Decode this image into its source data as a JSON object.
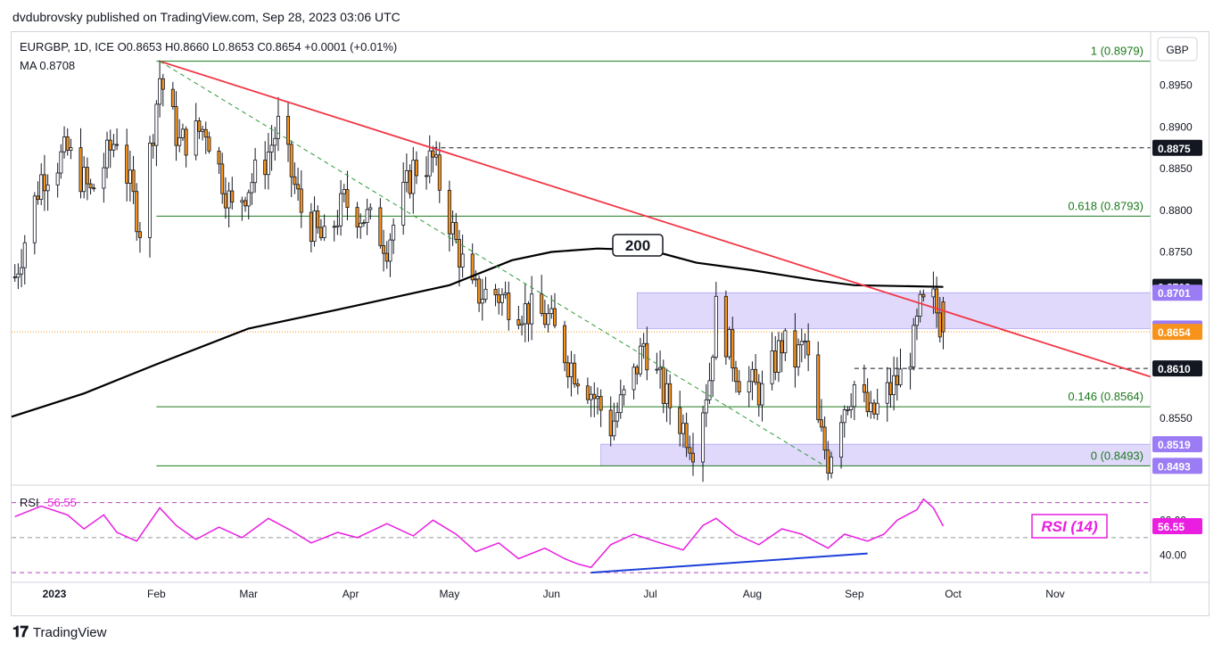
{
  "header": {
    "publisher": "dvdubrovsky published on TradingView.com, Sep 28, 2023 03:06 UTC"
  },
  "legend": {
    "symbol_line": "EURGBP, 1D, ICE  O0.8653  H0.8660  L0.8653  C0.8654  +0.0001 (+0.01%)",
    "ma_line": "MA  0.8708",
    "rsi_label": "RSI",
    "rsi_value": "56.55"
  },
  "currency": "GBP",
  "footer": {
    "brand": "TradingView"
  },
  "colors": {
    "up": "#ffffff",
    "down": "#f7931a",
    "wick": "#131722",
    "ma": "#000000",
    "trendline": "#f23645",
    "fib": "#1b7a1b",
    "zone": "#d8cffa",
    "rsi": "#e91ee0",
    "divergence": "#1c3fd9",
    "price_line": "#f7931a"
  },
  "chart_data": [
    {
      "type": "candlestick",
      "title": "EURGBP, 1D, ICE",
      "x_axis": {
        "type": "date",
        "range": [
          "2022-12-19",
          "2023-11-30"
        ],
        "ticks": [
          {
            "date": "2023-01-01",
            "label": "2023",
            "bold": true
          },
          {
            "date": "2023-02-01",
            "label": "Feb"
          },
          {
            "date": "2023-03-01",
            "label": "Mar"
          },
          {
            "date": "2023-04-01",
            "label": "Apr"
          },
          {
            "date": "2023-05-01",
            "label": "May"
          },
          {
            "date": "2023-06-01",
            "label": "Jun"
          },
          {
            "date": "2023-07-01",
            "label": "Jul"
          },
          {
            "date": "2023-08-01",
            "label": "Aug"
          },
          {
            "date": "2023-09-01",
            "label": "Sep"
          },
          {
            "date": "2023-10-01",
            "label": "Oct"
          },
          {
            "date": "2023-11-01",
            "label": "Nov"
          }
        ]
      },
      "y_axis": {
        "range": [
          0.8472,
          0.9014
        ],
        "ticks": [
          "0.8950",
          "0.8900",
          "0.8850",
          "0.8800",
          "0.8750",
          "0.8550"
        ]
      },
      "candles_anchor_close": [
        [
          "2022-12-20",
          0.872
        ],
        [
          "2022-12-28",
          0.884
        ],
        [
          "2023-01-05",
          0.887
        ],
        [
          "2023-01-12",
          0.882
        ],
        [
          "2023-01-20",
          0.889
        ],
        [
          "2023-01-27",
          0.878
        ],
        [
          "2023-02-02",
          0.896
        ],
        [
          "2023-02-08",
          0.888
        ],
        [
          "2023-02-16",
          0.89
        ],
        [
          "2023-02-24",
          0.88
        ],
        [
          "2023-03-06",
          0.886
        ],
        [
          "2023-03-10",
          0.89
        ],
        [
          "2023-03-17",
          0.88
        ],
        [
          "2023-03-24",
          0.876
        ],
        [
          "2023-03-30",
          0.881
        ],
        [
          "2023-04-06",
          0.879
        ],
        [
          "2023-04-12",
          0.876
        ],
        [
          "2023-04-20",
          0.885
        ],
        [
          "2023-04-26",
          0.886
        ],
        [
          "2023-05-03",
          0.876
        ],
        [
          "2023-05-08",
          0.87
        ],
        [
          "2023-05-15",
          0.87
        ],
        [
          "2023-05-24",
          0.868
        ],
        [
          "2023-05-31",
          0.867
        ],
        [
          "2023-06-06",
          0.862
        ],
        [
          "2023-06-12",
          0.859
        ],
        [
          "2023-06-19",
          0.854
        ],
        [
          "2023-06-26",
          0.86
        ],
        [
          "2023-06-29",
          0.864
        ],
        [
          "2023-07-05",
          0.858
        ],
        [
          "2023-07-11",
          0.854
        ],
        [
          "2023-07-14",
          0.852
        ],
        [
          "2023-07-19",
          0.86
        ],
        [
          "2023-07-21",
          0.868
        ],
        [
          "2023-07-28",
          0.86
        ],
        [
          "2023-08-04",
          0.858
        ],
        [
          "2023-08-10",
          0.864
        ],
        [
          "2023-08-14",
          0.862
        ],
        [
          "2023-08-17",
          0.864
        ],
        [
          "2023-08-21",
          0.854
        ],
        [
          "2023-08-24",
          0.85
        ],
        [
          "2023-08-28",
          0.856
        ],
        [
          "2023-09-01",
          0.859
        ],
        [
          "2023-09-06",
          0.855
        ],
        [
          "2023-09-11",
          0.858
        ],
        [
          "2023-09-15",
          0.86
        ],
        [
          "2023-09-19",
          0.864
        ],
        [
          "2023-09-21",
          0.868
        ],
        [
          "2023-09-25",
          0.869
        ],
        [
          "2023-09-28",
          0.8654
        ]
      ],
      "ma": {
        "name": "MA",
        "label": "200",
        "points": [
          [
            "2022-12-19",
            0.8552
          ],
          [
            "2023-01-10",
            0.858
          ],
          [
            "2023-02-01",
            0.8615
          ],
          [
            "2023-03-01",
            0.8658
          ],
          [
            "2023-04-01",
            0.8684
          ],
          [
            "2023-05-01",
            0.871
          ],
          [
            "2023-05-20",
            0.874
          ],
          [
            "2023-06-01",
            0.875
          ],
          [
            "2023-06-15",
            0.8754
          ],
          [
            "2023-07-01",
            0.8752
          ],
          [
            "2023-07-15",
            0.8737
          ],
          [
            "2023-08-01",
            0.8728
          ],
          [
            "2023-08-20",
            0.8716
          ],
          [
            "2023-09-01",
            0.871
          ],
          [
            "2023-09-28",
            0.8708
          ]
        ]
      },
      "trendlines": [
        {
          "from": [
            "2023-02-02",
            0.8979
          ],
          "to": [
            "2023-11-30",
            0.86
          ],
          "style": "solid"
        },
        {
          "from": [
            "2023-02-02",
            0.8979
          ],
          "to": [
            "2023-08-23",
            0.8493
          ],
          "style": "dashed"
        }
      ],
      "fib_levels": [
        {
          "label": "1 (0.8979)",
          "value": 0.8979
        },
        {
          "label": "0.618 (0.8793)",
          "value": 0.8793
        },
        {
          "label": "0.146 (0.8564)",
          "value": 0.8564
        },
        {
          "label": "0 (0.8493)",
          "value": 0.8493
        }
      ],
      "zones": [
        {
          "from": "2023-06-27",
          "to": "2023-11-30",
          "low": 0.8658,
          "high": 0.8701
        },
        {
          "from": "2023-06-16",
          "to": "2023-11-30",
          "low": 0.8493,
          "high": 0.8519
        }
      ],
      "dashed_levels": [
        {
          "from": "2023-04-26",
          "value": 0.8875
        },
        {
          "from": "2023-09-01",
          "value": 0.861
        }
      ],
      "price_badges": [
        {
          "text": "0.8875",
          "value": 0.8875,
          "kind": "dark"
        },
        {
          "text": "0.8708",
          "value": 0.8708,
          "kind": "dark"
        },
        {
          "text": "0.8701",
          "value": 0.8701,
          "kind": "purple"
        },
        {
          "text": "0.8658",
          "value": 0.8658,
          "kind": "purple"
        },
        {
          "text": "0.8654",
          "value": 0.8654,
          "kind": "orange"
        },
        {
          "text": "0.8610",
          "value": 0.861,
          "kind": "dark"
        },
        {
          "text": "0.8519",
          "value": 0.8519,
          "kind": "purple"
        },
        {
          "text": "0.8493",
          "value": 0.8493,
          "kind": "purple"
        }
      ]
    },
    {
      "type": "line",
      "title": "RSI (14)",
      "y_axis": {
        "range": [
          25,
          80
        ],
        "ticks": [
          "60.00",
          "40.00"
        ],
        "levels": [
          70,
          50,
          30
        ]
      },
      "current_value": "56.55",
      "series": [
        {
          "name": "RSI",
          "points": [
            [
              "2022-12-20",
              62
            ],
            [
              "2022-12-28",
              68
            ],
            [
              "2023-01-05",
              63
            ],
            [
              "2023-01-10",
              55
            ],
            [
              "2023-01-16",
              63
            ],
            [
              "2023-01-20",
              53
            ],
            [
              "2023-01-26",
              48
            ],
            [
              "2023-02-02",
              67
            ],
            [
              "2023-02-07",
              57
            ],
            [
              "2023-02-13",
              49
            ],
            [
              "2023-02-20",
              56
            ],
            [
              "2023-02-27",
              50
            ],
            [
              "2023-03-07",
              61
            ],
            [
              "2023-03-14",
              54
            ],
            [
              "2023-03-20",
              47
            ],
            [
              "2023-03-28",
              53
            ],
            [
              "2023-04-03",
              50
            ],
            [
              "2023-04-12",
              58
            ],
            [
              "2023-04-20",
              51
            ],
            [
              "2023-04-26",
              60
            ],
            [
              "2023-05-03",
              52
            ],
            [
              "2023-05-09",
              42
            ],
            [
              "2023-05-16",
              47
            ],
            [
              "2023-05-22",
              38
            ],
            [
              "2023-05-30",
              44
            ],
            [
              "2023-06-05",
              38
            ],
            [
              "2023-06-09",
              35
            ],
            [
              "2023-06-13",
              33
            ],
            [
              "2023-06-19",
              46
            ],
            [
              "2023-06-26",
              52
            ],
            [
              "2023-07-04",
              47
            ],
            [
              "2023-07-11",
              43
            ],
            [
              "2023-07-17",
              57
            ],
            [
              "2023-07-21",
              61
            ],
            [
              "2023-07-27",
              52
            ],
            [
              "2023-08-03",
              46
            ],
            [
              "2023-08-10",
              55
            ],
            [
              "2023-08-16",
              52
            ],
            [
              "2023-08-21",
              47
            ],
            [
              "2023-08-24",
              44
            ],
            [
              "2023-08-29",
              52
            ],
            [
              "2023-09-05",
              48
            ],
            [
              "2023-09-10",
              52
            ],
            [
              "2023-09-14",
              60
            ],
            [
              "2023-09-20",
              66
            ],
            [
              "2023-09-22",
              72
            ],
            [
              "2023-09-25",
              67
            ],
            [
              "2023-09-28",
              56.55
            ]
          ]
        }
      ],
      "divergence_line": {
        "from": [
          "2023-06-13",
          30
        ],
        "to": [
          "2023-09-05",
          41
        ]
      }
    }
  ]
}
